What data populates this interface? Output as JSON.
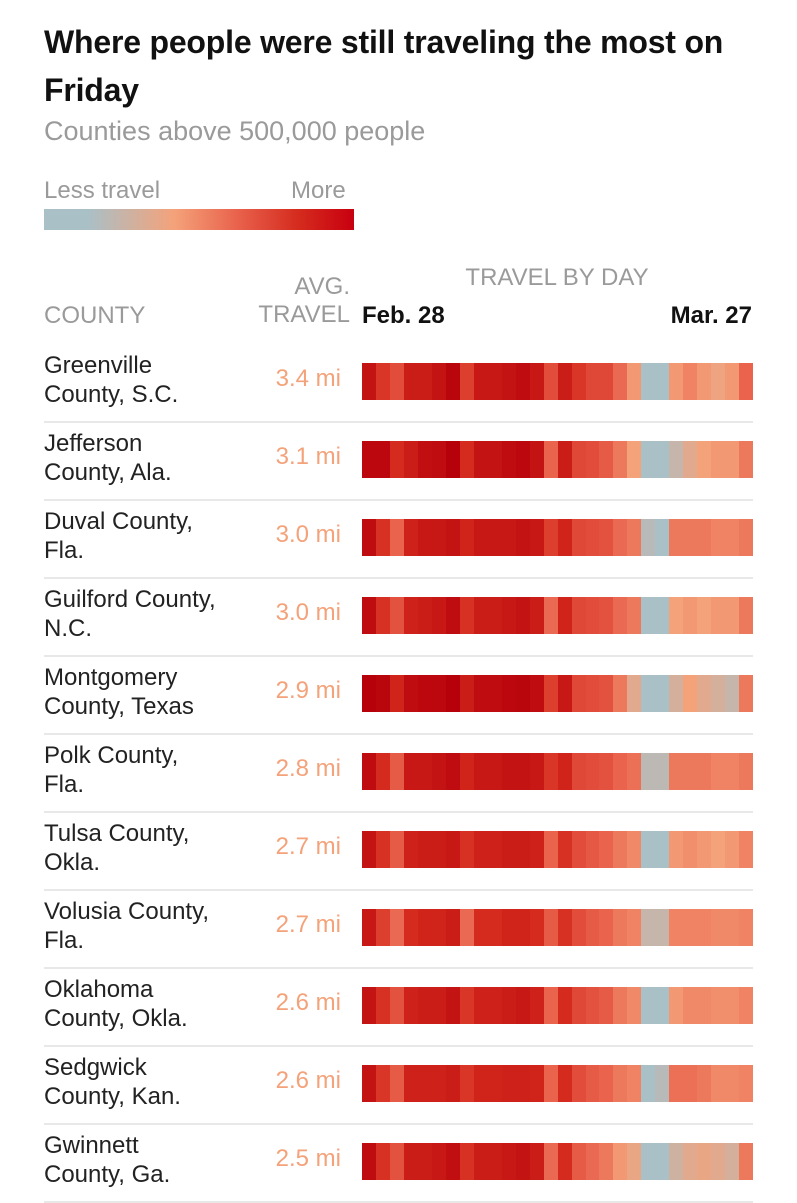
{
  "title": "Where people were still traveling the most on Friday",
  "subtitle": "Counties above 500,000 people",
  "legend": {
    "low_label": "Less travel",
    "high_label": "More"
  },
  "headers": {
    "county": "COUNTY",
    "avg_line1": "AVG.",
    "avg_line2": "TRAVEL",
    "by_day": "TRAVEL BY DAY",
    "start_date": "Feb. 28",
    "end_date": "Mar. 27"
  },
  "chart_data": {
    "type": "heatmap",
    "title": "Where people were still traveling the most on Friday",
    "subtitle": "Counties above 500,000 people",
    "x_start": "Feb. 28",
    "x_end": "Mar. 27",
    "x_label": "TRAVEL BY DAY",
    "scale": {
      "min_label": "Less travel",
      "max_label": "More",
      "range": [
        0,
        1
      ]
    },
    "rows": [
      {
        "county_line1": "Greenville",
        "county_line2": "County, S.C.",
        "avg": "3.4 mi",
        "intensity": [
          0.92,
          0.78,
          0.7,
          0.88,
          0.88,
          0.92,
          0.98,
          0.75,
          0.9,
          0.9,
          0.92,
          0.95,
          0.9,
          0.7,
          0.88,
          0.78,
          0.72,
          0.72,
          0.6,
          0.45,
          0.15,
          0.15,
          0.45,
          0.52,
          0.45,
          0.4,
          0.45,
          0.62
        ]
      },
      {
        "county_line1": "Jefferson",
        "county_line2": "County, Ala.",
        "avg": "3.1 mi",
        "intensity": [
          0.97,
          0.97,
          0.82,
          0.88,
          0.94,
          0.95,
          1.0,
          0.82,
          0.92,
          0.92,
          0.95,
          0.97,
          0.92,
          0.62,
          0.88,
          0.72,
          0.7,
          0.65,
          0.55,
          0.42,
          0.15,
          0.15,
          0.25,
          0.35,
          0.42,
          0.45,
          0.45,
          0.55
        ]
      },
      {
        "county_line1": "Duval County,",
        "county_line2": "Fla.",
        "avg": "3.0 mi",
        "intensity": [
          0.95,
          0.8,
          0.62,
          0.86,
          0.9,
          0.9,
          0.92,
          0.85,
          0.9,
          0.9,
          0.9,
          0.92,
          0.9,
          0.75,
          0.85,
          0.72,
          0.7,
          0.68,
          0.6,
          0.55,
          0.2,
          0.15,
          0.55,
          0.55,
          0.55,
          0.52,
          0.52,
          0.55
        ]
      },
      {
        "county_line1": "Guilford County,",
        "county_line2": "N.C.",
        "avg": "3.0 mi",
        "intensity": [
          0.95,
          0.8,
          0.68,
          0.86,
          0.88,
          0.9,
          0.95,
          0.8,
          0.88,
          0.88,
          0.9,
          0.92,
          0.88,
          0.6,
          0.85,
          0.72,
          0.7,
          0.68,
          0.6,
          0.55,
          0.15,
          0.15,
          0.42,
          0.45,
          0.42,
          0.45,
          0.45,
          0.55
        ]
      },
      {
        "county_line1": "Montgomery",
        "county_line2": "County, Texas",
        "avg": "2.9 mi",
        "intensity": [
          1.0,
          0.98,
          0.85,
          0.95,
          0.97,
          0.97,
          1.0,
          0.88,
          0.95,
          0.95,
          0.97,
          0.98,
          0.95,
          0.75,
          0.9,
          0.72,
          0.7,
          0.68,
          0.55,
          0.35,
          0.15,
          0.15,
          0.3,
          0.42,
          0.35,
          0.3,
          0.25,
          0.55
        ]
      },
      {
        "county_line1": "Polk County,",
        "county_line2": "Fla.",
        "avg": "2.8 mi",
        "intensity": [
          0.95,
          0.82,
          0.65,
          0.9,
          0.9,
          0.92,
          0.95,
          0.85,
          0.9,
          0.9,
          0.92,
          0.92,
          0.9,
          0.78,
          0.85,
          0.72,
          0.7,
          0.68,
          0.62,
          0.58,
          0.22,
          0.22,
          0.55,
          0.55,
          0.55,
          0.52,
          0.52,
          0.55
        ]
      },
      {
        "county_line1": "Tulsa County,",
        "county_line2": "Okla.",
        "avg": "2.7 mi",
        "intensity": [
          0.92,
          0.8,
          0.65,
          0.86,
          0.88,
          0.88,
          0.9,
          0.8,
          0.86,
          0.86,
          0.88,
          0.88,
          0.86,
          0.62,
          0.8,
          0.7,
          0.66,
          0.62,
          0.55,
          0.5,
          0.15,
          0.15,
          0.45,
          0.48,
          0.45,
          0.42,
          0.45,
          0.52
        ]
      },
      {
        "county_line1": "Volusia County,",
        "county_line2": "Fla.",
        "avg": "2.7 mi",
        "intensity": [
          0.9,
          0.75,
          0.6,
          0.82,
          0.85,
          0.85,
          0.88,
          0.6,
          0.82,
          0.82,
          0.85,
          0.85,
          0.82,
          0.65,
          0.8,
          0.7,
          0.65,
          0.62,
          0.55,
          0.52,
          0.25,
          0.25,
          0.52,
          0.52,
          0.52,
          0.5,
          0.5,
          0.52
        ]
      },
      {
        "county_line1": "Oklahoma",
        "county_line2": "County, Okla.",
        "avg": "2.6 mi",
        "intensity": [
          0.92,
          0.8,
          0.68,
          0.86,
          0.88,
          0.88,
          0.92,
          0.78,
          0.86,
          0.86,
          0.88,
          0.9,
          0.86,
          0.62,
          0.82,
          0.72,
          0.68,
          0.65,
          0.55,
          0.5,
          0.15,
          0.15,
          0.45,
          0.5,
          0.5,
          0.48,
          0.48,
          0.52
        ]
      },
      {
        "county_line1": "Sedgwick",
        "county_line2": "County, Kan.",
        "avg": "2.6 mi",
        "intensity": [
          0.92,
          0.78,
          0.65,
          0.86,
          0.86,
          0.86,
          0.88,
          0.78,
          0.85,
          0.85,
          0.86,
          0.86,
          0.85,
          0.62,
          0.82,
          0.7,
          0.65,
          0.62,
          0.55,
          0.52,
          0.15,
          0.2,
          0.58,
          0.58,
          0.55,
          0.5,
          0.5,
          0.52
        ]
      },
      {
        "county_line1": "Gwinnett",
        "county_line2": "County, Ga.",
        "avg": "2.5 mi",
        "intensity": [
          0.95,
          0.8,
          0.68,
          0.88,
          0.88,
          0.9,
          0.94,
          0.8,
          0.88,
          0.88,
          0.9,
          0.92,
          0.88,
          0.6,
          0.82,
          0.65,
          0.6,
          0.55,
          0.45,
          0.38,
          0.15,
          0.15,
          0.28,
          0.35,
          0.38,
          0.35,
          0.3,
          0.55
        ]
      }
    ]
  }
}
